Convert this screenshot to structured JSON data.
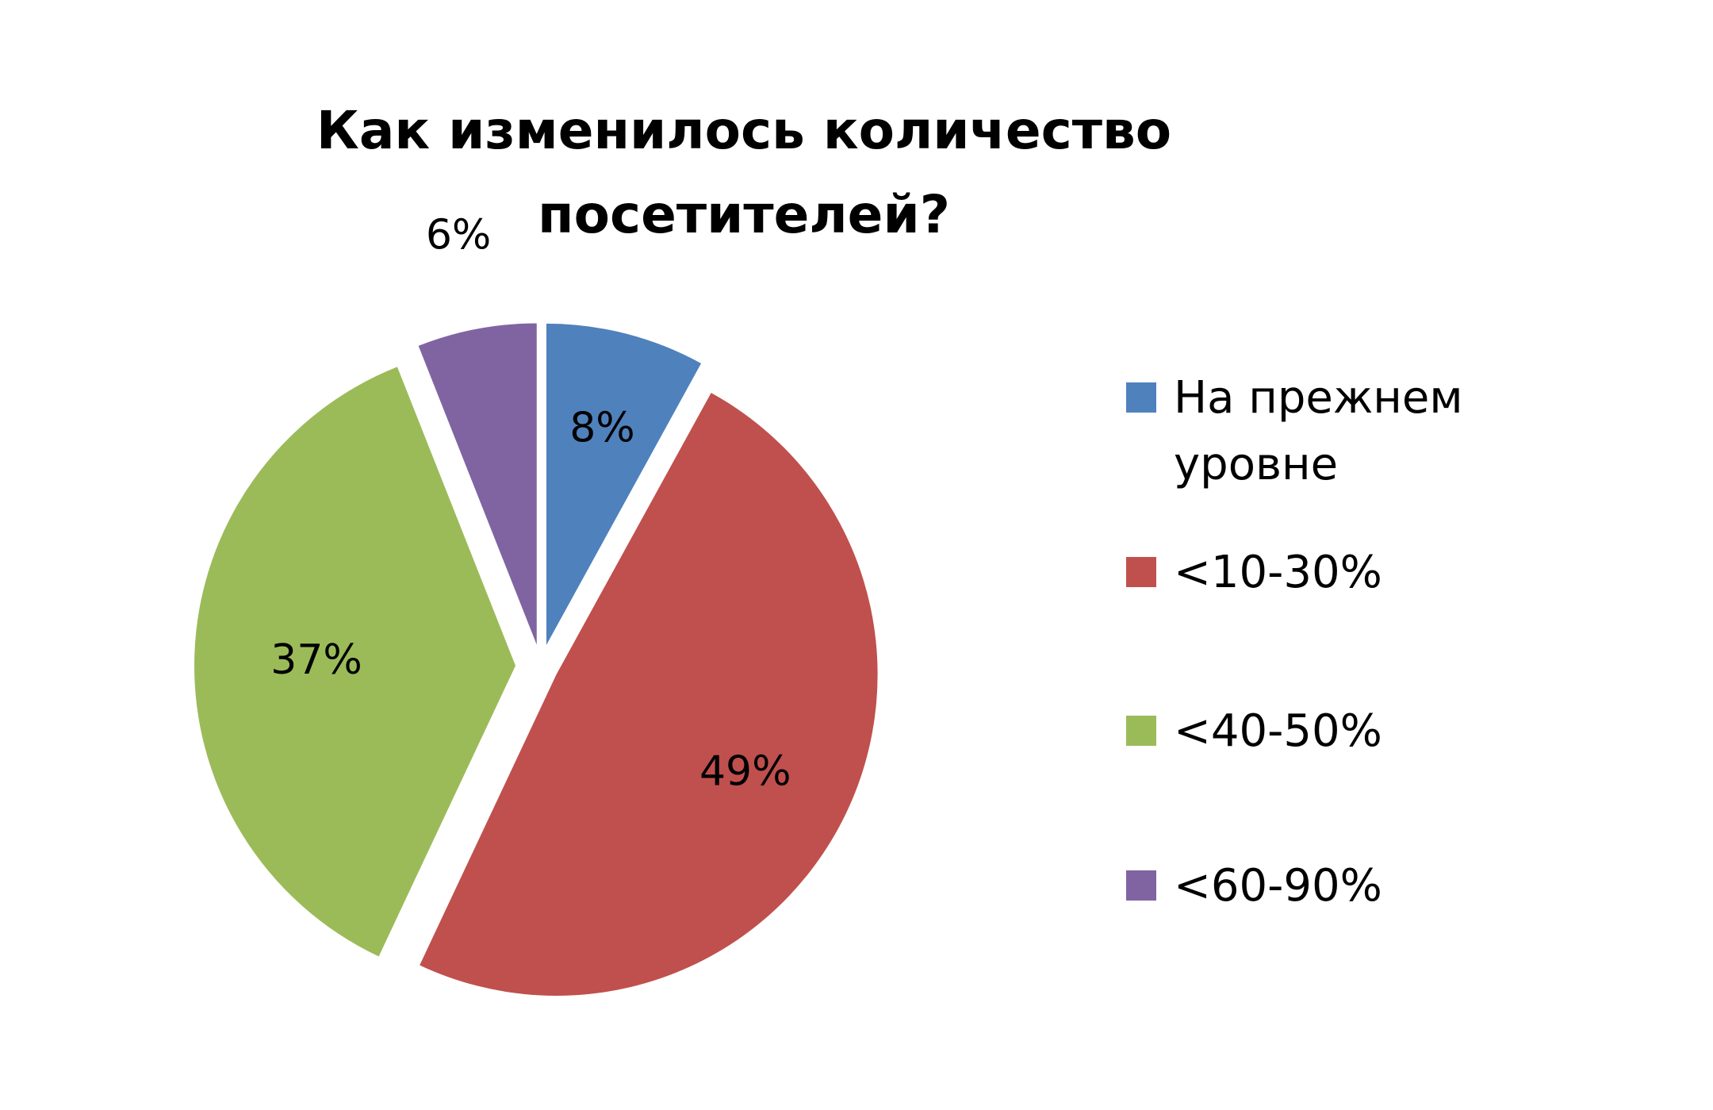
{
  "chart_data": {
    "type": "pie",
    "title": "Как изменилось количество\nпосетителей?",
    "categories": [
      "На прежнем\nуровне",
      "<10-30%",
      "<40-50%",
      "<60-90%"
    ],
    "values": [
      8,
      49,
      37,
      6
    ],
    "data_labels": [
      "8%",
      "49%",
      "37%",
      "6%"
    ],
    "colors": [
      "#4f81bd",
      "#c0504d",
      "#9bbb59",
      "#8064a2"
    ],
    "exploded": true,
    "start_angle": "top, clockwise",
    "legend_position": "right"
  }
}
